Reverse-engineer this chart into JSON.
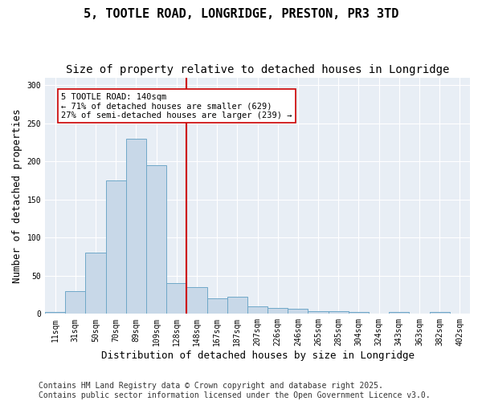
{
  "title1": "5, TOOTLE ROAD, LONGRIDGE, PRESTON, PR3 3TD",
  "title2": "Size of property relative to detached houses in Longridge",
  "xlabel": "Distribution of detached houses by size in Longridge",
  "ylabel": "Number of detached properties",
  "bins": [
    "11sqm",
    "31sqm",
    "50sqm",
    "70sqm",
    "89sqm",
    "109sqm",
    "128sqm",
    "148sqm",
    "167sqm",
    "187sqm",
    "207sqm",
    "226sqm",
    "246sqm",
    "265sqm",
    "285sqm",
    "304sqm",
    "324sqm",
    "343sqm",
    "363sqm",
    "382sqm",
    "402sqm"
  ],
  "bar_heights": [
    2,
    30,
    80,
    175,
    230,
    195,
    40,
    35,
    20,
    22,
    10,
    8,
    7,
    3,
    3,
    2,
    0,
    2,
    0,
    2,
    0
  ],
  "bar_color": "#c8d8e8",
  "bar_edge_color": "#6fa8c8",
  "vline_color": "#cc0000",
  "annotation_text": "5 TOOTLE ROAD: 140sqm\n← 71% of detached houses are smaller (629)\n27% of semi-detached houses are larger (239) →",
  "annotation_box_color": "#ffffff",
  "annotation_box_edge": "#cc0000",
  "ylim": [
    0,
    310
  ],
  "yticks": [
    0,
    50,
    100,
    150,
    200,
    250,
    300
  ],
  "background_color": "#e8eef5",
  "footer1": "Contains HM Land Registry data © Crown copyright and database right 2025.",
  "footer2": "Contains public sector information licensed under the Open Government Licence v3.0.",
  "title1_fontsize": 11,
  "title2_fontsize": 10,
  "tick_fontsize": 7,
  "xlabel_fontsize": 9,
  "ylabel_fontsize": 9,
  "footer_fontsize": 7
}
